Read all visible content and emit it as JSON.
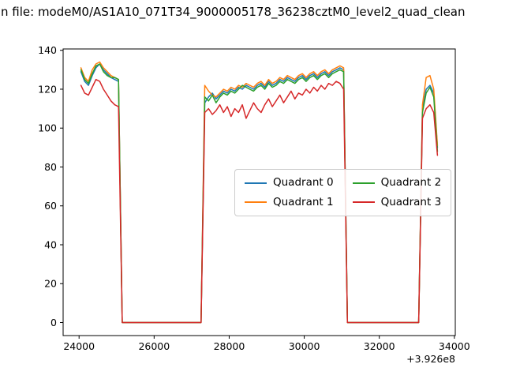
{
  "chart_data": {
    "type": "line",
    "title": "n file: modeM0/AS1A10_071T34_9000005178_36238cztM0_level2_quad_clean",
    "xlabel": "",
    "ylabel": "",
    "x_offset_label": "+3.926e8",
    "xlim": [
      23575,
      34025
    ],
    "ylim": [
      -6.7,
      140.7
    ],
    "xticks": [
      24000,
      26000,
      28000,
      30000,
      32000,
      34000
    ],
    "yticks": [
      0,
      20,
      40,
      60,
      80,
      100,
      120,
      140
    ],
    "grid": false,
    "legend": {
      "position": "center-right",
      "ncol": 2
    },
    "x": [
      24050,
      24150,
      24250,
      24350,
      24450,
      24550,
      24650,
      24750,
      24850,
      24950,
      25050,
      25150,
      27250,
      27350,
      27450,
      27550,
      27650,
      27750,
      27850,
      27950,
      28050,
      28150,
      28250,
      28350,
      28450,
      28550,
      28650,
      28750,
      28850,
      28950,
      29050,
      29150,
      29250,
      29350,
      29450,
      29550,
      29650,
      29750,
      29850,
      29950,
      30050,
      30150,
      30250,
      30350,
      30450,
      30550,
      30650,
      30750,
      30850,
      30950,
      31050,
      31150,
      33050,
      33150,
      33250,
      33350,
      33450,
      33550
    ],
    "series": [
      {
        "name": "Quadrant 0",
        "color": "#1f77b4",
        "values": [
          129,
          124,
          122,
          127,
          131,
          133,
          130,
          128,
          126,
          125,
          124,
          0,
          0,
          113,
          116,
          118,
          115,
          117,
          119,
          118,
          120,
          119,
          121,
          120,
          122,
          121,
          120,
          122,
          123,
          121,
          124,
          122,
          123,
          125,
          124,
          126,
          125,
          124,
          126,
          127,
          125,
          127,
          128,
          126,
          128,
          129,
          127,
          129,
          130,
          131,
          130,
          0,
          0,
          110,
          120,
          122,
          118,
          90
        ]
      },
      {
        "name": "Quadrant 1",
        "color": "#ff7f0e",
        "values": [
          131,
          126,
          124,
          130,
          133,
          134,
          131,
          129,
          127,
          126,
          125,
          0,
          0,
          122,
          119,
          117,
          116,
          118,
          120,
          119,
          121,
          120,
          122,
          121,
          123,
          122,
          121,
          123,
          124,
          122,
          125,
          123,
          124,
          126,
          125,
          127,
          126,
          125,
          127,
          128,
          126,
          128,
          129,
          127,
          129,
          130,
          128,
          130,
          131,
          132,
          131,
          0,
          0,
          112,
          126,
          127,
          120,
          91
        ]
      },
      {
        "name": "Quadrant 2",
        "color": "#2ca02c",
        "values": [
          130,
          125,
          123,
          128,
          132,
          133,
          129,
          127,
          126,
          126,
          125,
          0,
          0,
          116,
          114,
          117,
          113,
          116,
          118,
          117,
          119,
          118,
          120,
          122,
          121,
          120,
          119,
          121,
          122,
          120,
          123,
          121,
          122,
          124,
          123,
          125,
          124,
          123,
          125,
          126,
          124,
          126,
          127,
          125,
          127,
          128,
          126,
          128,
          129,
          130,
          129,
          0,
          0,
          108,
          118,
          121,
          116,
          88
        ]
      },
      {
        "name": "Quadrant 3",
        "color": "#d62728",
        "values": [
          122,
          118,
          117,
          121,
          125,
          124,
          120,
          117,
          114,
          112,
          111,
          0,
          0,
          108,
          110,
          107,
          109,
          112,
          108,
          111,
          106,
          110,
          108,
          112,
          105,
          109,
          113,
          110,
          108,
          112,
          115,
          111,
          114,
          117,
          113,
          116,
          119,
          115,
          118,
          117,
          120,
          118,
          121,
          119,
          122,
          120,
          123,
          122,
          124,
          123,
          120,
          0,
          0,
          105,
          110,
          112,
          108,
          86
        ]
      }
    ]
  }
}
